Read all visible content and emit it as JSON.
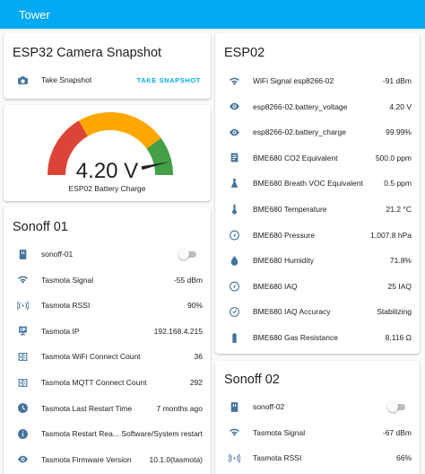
{
  "header": {
    "title": "Tower"
  },
  "camera_card": {
    "title": "ESP32 Camera Snapshot",
    "row_label": "Take Snapshot",
    "button_label": "TAKE SNAPSHOT"
  },
  "gauge": {
    "value_text": "4.20 V",
    "name": "ESP02 Battery Charge",
    "level_fraction": 0.93,
    "colors": {
      "red": "#db4437",
      "orange": "#ffa600",
      "green": "#43a047"
    }
  },
  "sonoff01": {
    "title": "Sonoff 01",
    "rows": [
      {
        "label": "sonoff-01",
        "value": "",
        "icon": "power-socket-icon",
        "switch": "off"
      },
      {
        "label": "Tasmota Signal",
        "value": "-55 dBm",
        "icon": "wifi-icon"
      },
      {
        "label": "Tasmota RSSI",
        "value": "90%",
        "icon": "signal-broadcast-icon"
      },
      {
        "label": "Tasmota IP",
        "value": "192.168.4.215",
        "icon": "ip-network-icon"
      },
      {
        "label": "Tasmota WiFi Connect Count",
        "value": "36",
        "icon": "counter-icon"
      },
      {
        "label": "Tasmota MQTT Connect Count",
        "value": "292",
        "icon": "counter-icon"
      },
      {
        "label": "Tasmota Last Restart Time",
        "value": "7 months ago",
        "icon": "clock-icon"
      },
      {
        "label": "Tasmota Restart Rea...",
        "value": "Software/System restart",
        "icon": "information-icon"
      },
      {
        "label": "Tasmota Firmware Version",
        "value": "10.1.0(tasmota)",
        "icon": "eye-icon"
      }
    ]
  },
  "esp02": {
    "title": "ESP02",
    "rows": [
      {
        "label": "WiFi Signal esp8266-02",
        "value": "-91 dBm",
        "icon": "wifi-icon"
      },
      {
        "label": "esp8266-02.battery_voltage",
        "value": "4.20 V",
        "icon": "eye-icon"
      },
      {
        "label": "esp8266-02.battery_charge",
        "value": "99.99%",
        "icon": "eye-icon"
      },
      {
        "label": "BME680 CO2 Equivalent",
        "value": "500.0 ppm",
        "icon": "co2-sensor-icon"
      },
      {
        "label": "BME680 Breath VOC Equivalent",
        "value": "0.5 ppm",
        "icon": "voc-sensor-icon"
      },
      {
        "label": "BME680 Temperature",
        "value": "21.2 °C",
        "icon": "thermometer-icon"
      },
      {
        "label": "BME680 Pressure",
        "value": "1,007.8 hPa",
        "icon": "gauge-icon"
      },
      {
        "label": "BME680 Humidity",
        "value": "71.8%",
        "icon": "water-drop-icon"
      },
      {
        "label": "BME680 IAQ",
        "value": "25 IAQ",
        "icon": "gauge-icon"
      },
      {
        "label": "BME680 IAQ Accuracy",
        "value": "Stabilizing",
        "icon": "check-circle-icon"
      },
      {
        "label": "BME680 Gas Resistance",
        "value": "8,116 Ω",
        "icon": "battery-icon"
      }
    ]
  },
  "sonoff02": {
    "title": "Sonoff 02",
    "rows": [
      {
        "label": "sonoff-02",
        "value": "",
        "icon": "power-socket-icon",
        "switch": "off"
      },
      {
        "label": "Tasmota Signal",
        "value": "-67 dBm",
        "icon": "wifi-icon"
      },
      {
        "label": "Tasmota RSSI",
        "value": "66%",
        "icon": "signal-broadcast-icon"
      }
    ]
  }
}
